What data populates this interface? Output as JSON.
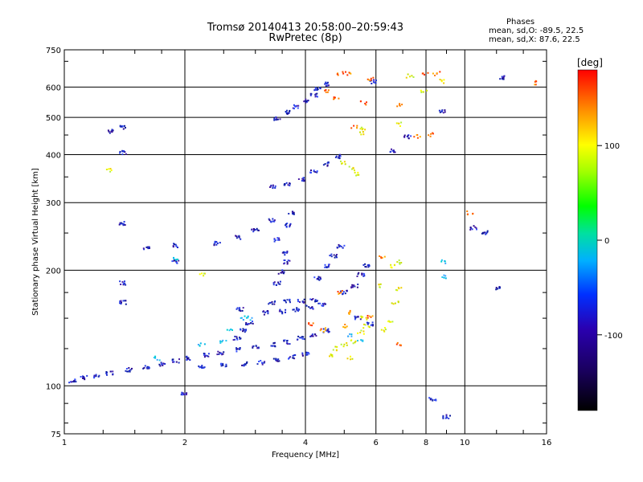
{
  "header": {
    "title_line1": "Tromsø 20140413 20:58:00–20:59:43",
    "title_line2": "RwPretec (8p)",
    "phases_title": "Phases",
    "phases_o": "mean, sd,O: -89.5, 22.5",
    "phases_x": "mean, sd,X:  87.6, 22.5"
  },
  "chart_data": {
    "type": "scatter",
    "xlabel": "Frequency [MHz]",
    "ylabel": "Stationary phase Virtual Height [km]",
    "xscale": "log",
    "yscale": "log",
    "xlim": [
      1,
      16
    ],
    "ylim": [
      75,
      750
    ],
    "x_ticks": [
      1,
      2,
      4,
      6,
      8,
      10,
      16
    ],
    "y_ticks": [
      75,
      100,
      200,
      300,
      400,
      500,
      600,
      750
    ],
    "x_grid": [
      2,
      4,
      6,
      8,
      10
    ],
    "y_grid": [
      100,
      200,
      300,
      400,
      500,
      600
    ],
    "colorbar": {
      "label": "[deg]",
      "range": [
        -180,
        180
      ],
      "ticks": [
        100,
        0,
        -100
      ]
    },
    "series": [
      {
        "points": [
          [
            1.05,
            103
          ],
          [
            1.12,
            105
          ],
          [
            1.2,
            106
          ],
          [
            1.3,
            108
          ],
          [
            1.45,
            110
          ],
          [
            1.6,
            112
          ],
          [
            1.75,
            114
          ],
          [
            1.9,
            116
          ],
          [
            2.05,
            118
          ],
          [
            2.25,
            120
          ],
          [
            2.45,
            122
          ],
          [
            2.7,
            124
          ],
          [
            3.0,
            126
          ],
          [
            3.3,
            128
          ],
          [
            3.6,
            130
          ],
          [
            3.9,
            133
          ],
          [
            4.2,
            136
          ],
          [
            4.5,
            139
          ],
          [
            2.2,
            112
          ],
          [
            2.5,
            113
          ],
          [
            2.8,
            114
          ],
          [
            3.1,
            115
          ],
          [
            3.4,
            117
          ],
          [
            3.7,
            119
          ],
          [
            4.0,
            121
          ],
          [
            2.7,
            133
          ],
          [
            2.8,
            139
          ],
          [
            2.9,
            146
          ],
          [
            2.75,
            158
          ],
          [
            3.2,
            155
          ],
          [
            3.5,
            156
          ],
          [
            3.8,
            158
          ],
          [
            4.1,
            160
          ],
          [
            4.4,
            162
          ],
          [
            3.3,
            165
          ],
          [
            3.6,
            166
          ],
          [
            3.9,
            166
          ],
          [
            4.2,
            167
          ],
          [
            3.4,
            185
          ],
          [
            3.5,
            198
          ],
          [
            3.6,
            210
          ],
          [
            3.55,
            222
          ],
          [
            3.4,
            240
          ],
          [
            3.6,
            262
          ],
          [
            3.7,
            283
          ],
          [
            4.3,
            190
          ],
          [
            4.5,
            205
          ],
          [
            4.7,
            218
          ],
          [
            4.9,
            230
          ],
          [
            5.0,
            175
          ],
          [
            5.3,
            182
          ],
          [
            5.5,
            195
          ],
          [
            5.7,
            205
          ],
          [
            5.4,
            150
          ],
          [
            5.8,
            145
          ],
          [
            2.4,
            235
          ],
          [
            2.7,
            243
          ],
          [
            3.0,
            255
          ],
          [
            3.3,
            270
          ],
          [
            3.3,
            330
          ],
          [
            3.6,
            336
          ],
          [
            3.9,
            345
          ],
          [
            4.2,
            360
          ],
          [
            4.5,
            378
          ],
          [
            4.8,
            395
          ],
          [
            3.4,
            497
          ],
          [
            3.6,
            515
          ],
          [
            3.8,
            533
          ],
          [
            4.0,
            553
          ],
          [
            4.2,
            572
          ],
          [
            4.3,
            595
          ],
          [
            4.5,
            610
          ],
          [
            1.3,
            460
          ],
          [
            1.4,
            470
          ],
          [
            1.4,
            405
          ],
          [
            1.4,
            165
          ],
          [
            1.4,
            185
          ],
          [
            1.4,
            265
          ],
          [
            1.6,
            228
          ],
          [
            1.9,
            232
          ],
          [
            1.9,
            210
          ],
          [
            2.0,
            95
          ],
          [
            8.3,
            92
          ],
          [
            9.0,
            83
          ],
          [
            5.9,
            620
          ],
          [
            6.6,
            410
          ],
          [
            7.2,
            445
          ],
          [
            8.8,
            520
          ],
          [
            12.3,
            635
          ],
          [
            10.5,
            258
          ],
          [
            11.2,
            250
          ],
          [
            12.2,
            180
          ]
        ]
      },
      {
        "points": [
          [
            2.6,
            140
          ],
          [
            2.9,
            150
          ],
          [
            2.2,
            128
          ],
          [
            2.5,
            130
          ],
          [
            1.7,
            118
          ],
          [
            5.2,
            135
          ],
          [
            5.5,
            132
          ],
          [
            8.9,
            192
          ],
          [
            8.8,
            210
          ],
          [
            1.9,
            215
          ],
          [
            2.8,
            150
          ]
        ]
      },
      {
        "points": [
          [
            4.7,
            125
          ],
          [
            5.0,
            128
          ],
          [
            5.3,
            130
          ],
          [
            5.5,
            138
          ],
          [
            5.7,
            143
          ],
          [
            5.6,
            150
          ],
          [
            6.3,
            140
          ],
          [
            6.5,
            147
          ],
          [
            6.7,
            165
          ],
          [
            6.8,
            178
          ],
          [
            6.2,
            182
          ],
          [
            6.6,
            205
          ],
          [
            6.9,
            210
          ],
          [
            5.4,
            355
          ],
          [
            5.2,
            368
          ],
          [
            5.0,
            380
          ],
          [
            5.5,
            455
          ],
          [
            5.6,
            470
          ],
          [
            6.9,
            480
          ],
          [
            7.3,
            640
          ],
          [
            7.9,
            585
          ],
          [
            8.8,
            620
          ],
          [
            4.6,
            120
          ],
          [
            5.2,
            118
          ],
          [
            1.3,
            365
          ],
          [
            2.2,
            195
          ]
        ]
      },
      {
        "points": [
          [
            4.5,
            585
          ],
          [
            4.8,
            560
          ],
          [
            4.9,
            650
          ],
          [
            5.6,
            545
          ],
          [
            5.8,
            630
          ],
          [
            7.6,
            445
          ],
          [
            8.2,
            450
          ],
          [
            8.5,
            650
          ],
          [
            5.0,
            143
          ],
          [
            5.2,
            155
          ],
          [
            4.9,
            175
          ],
          [
            6.2,
            215
          ],
          [
            6.9,
            540
          ],
          [
            8.0,
            645
          ],
          [
            10.3,
            282
          ],
          [
            14.8,
            615
          ],
          [
            4.1,
            145
          ],
          [
            4.4,
            140
          ],
          [
            6.9,
            128
          ],
          [
            5.8,
            152
          ],
          [
            5.1,
            650
          ],
          [
            5.3,
            470
          ]
        ]
      }
    ]
  }
}
